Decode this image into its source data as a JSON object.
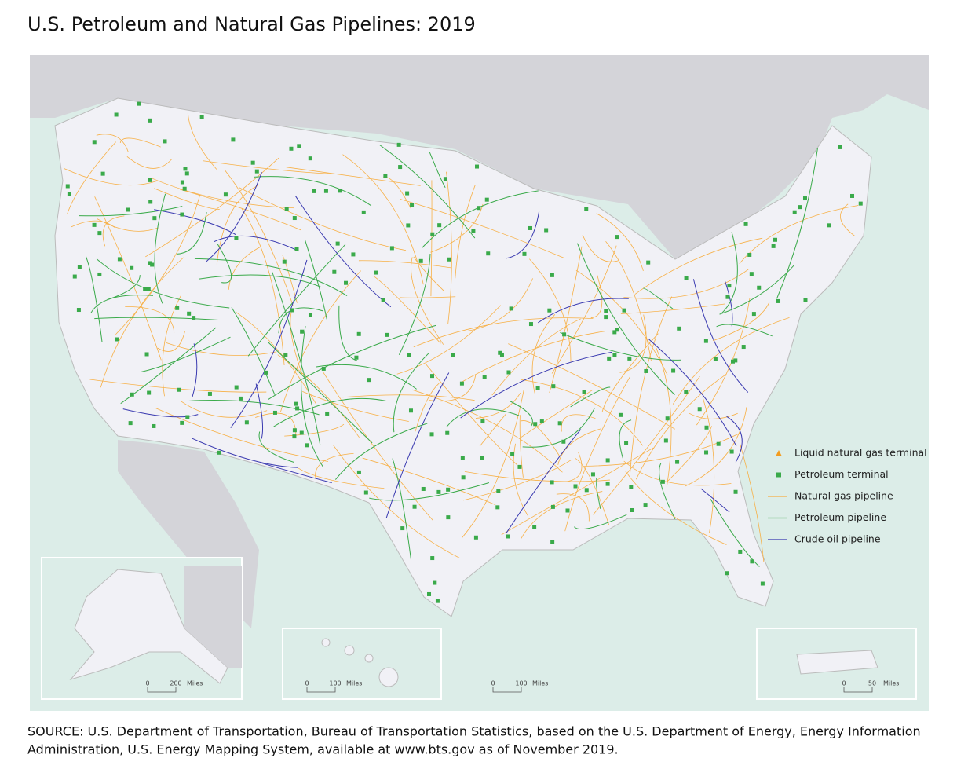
{
  "header": {
    "title": "U.S. Petroleum and Natural Gas Pipelines: 2019"
  },
  "legend": {
    "items": [
      {
        "label": "Liquid natural gas terminal",
        "symbol": "triangle",
        "color": "#f39c1f"
      },
      {
        "label": "Petroleum terminal",
        "symbol": "square",
        "color": "#3aaa4a"
      },
      {
        "label": "Natural gas pipeline",
        "symbol": "line",
        "color": "#f7b046"
      },
      {
        "label": "Petroleum pipeline",
        "symbol": "line",
        "color": "#3aaa4a"
      },
      {
        "label": "Crude oil pipeline",
        "symbol": "line",
        "color": "#3a3ab0"
      }
    ]
  },
  "scale_bars": {
    "alaska": {
      "start": 0,
      "end": 200,
      "unit": "Miles"
    },
    "hawaii": {
      "start": 0,
      "end": 100,
      "unit": "Miles"
    },
    "mainland": {
      "start": 0,
      "end": 100,
      "unit": "Miles"
    },
    "puerto_rico": {
      "start": 0,
      "end": 50,
      "unit": "Miles"
    }
  },
  "source": {
    "lines": [
      "SOURCE: U.S. Department of Transportation, Bureau of Transportation Statistics, based on the U.S. Department of Energy, Energy Information",
      "Administration, U.S. Energy Mapping System, available at www.bts.gov as of November 2019."
    ]
  }
}
